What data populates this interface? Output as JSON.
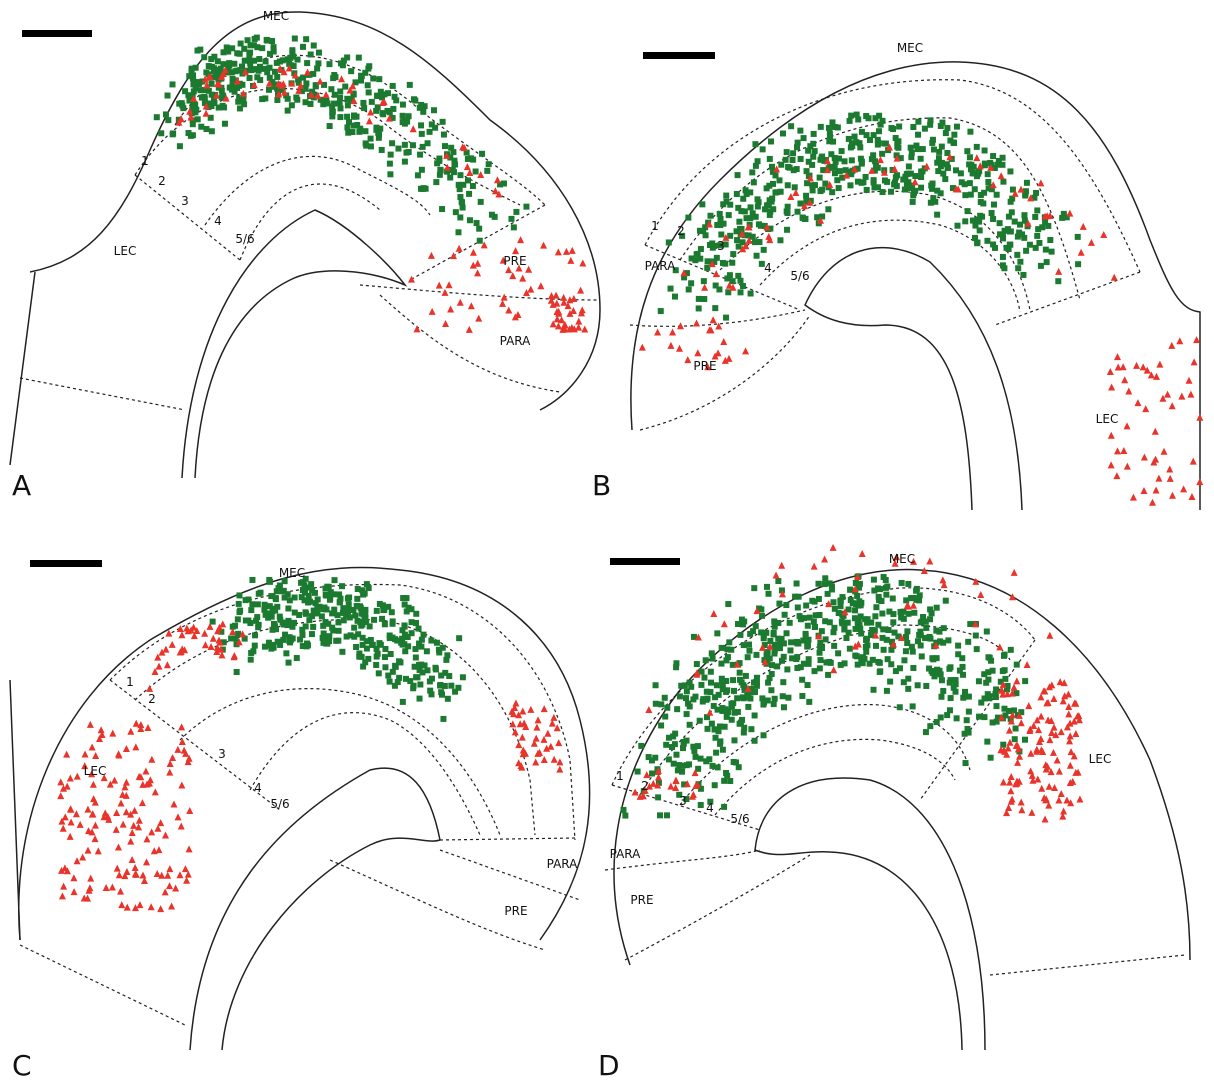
{
  "panels": [
    {
      "letter": "A",
      "labels": [
        "MEC",
        "LEC",
        "PRE",
        "PARA",
        "1",
        "2",
        "3",
        "4",
        "5/6"
      ]
    },
    {
      "letter": "B",
      "labels": [
        "MEC",
        "LEC",
        "PRE",
        "PARA",
        "1",
        "2",
        "3",
        "4",
        "5/6"
      ]
    },
    {
      "letter": "C",
      "labels": [
        "MEC",
        "LEC",
        "PRE",
        "PARA",
        "1",
        "2",
        "3",
        "4",
        "5/6"
      ]
    },
    {
      "letter": "D",
      "labels": [
        "MEC",
        "LEC",
        "PRE",
        "PARA",
        "1",
        "2",
        "3",
        "4",
        "5/6"
      ]
    }
  ]
}
